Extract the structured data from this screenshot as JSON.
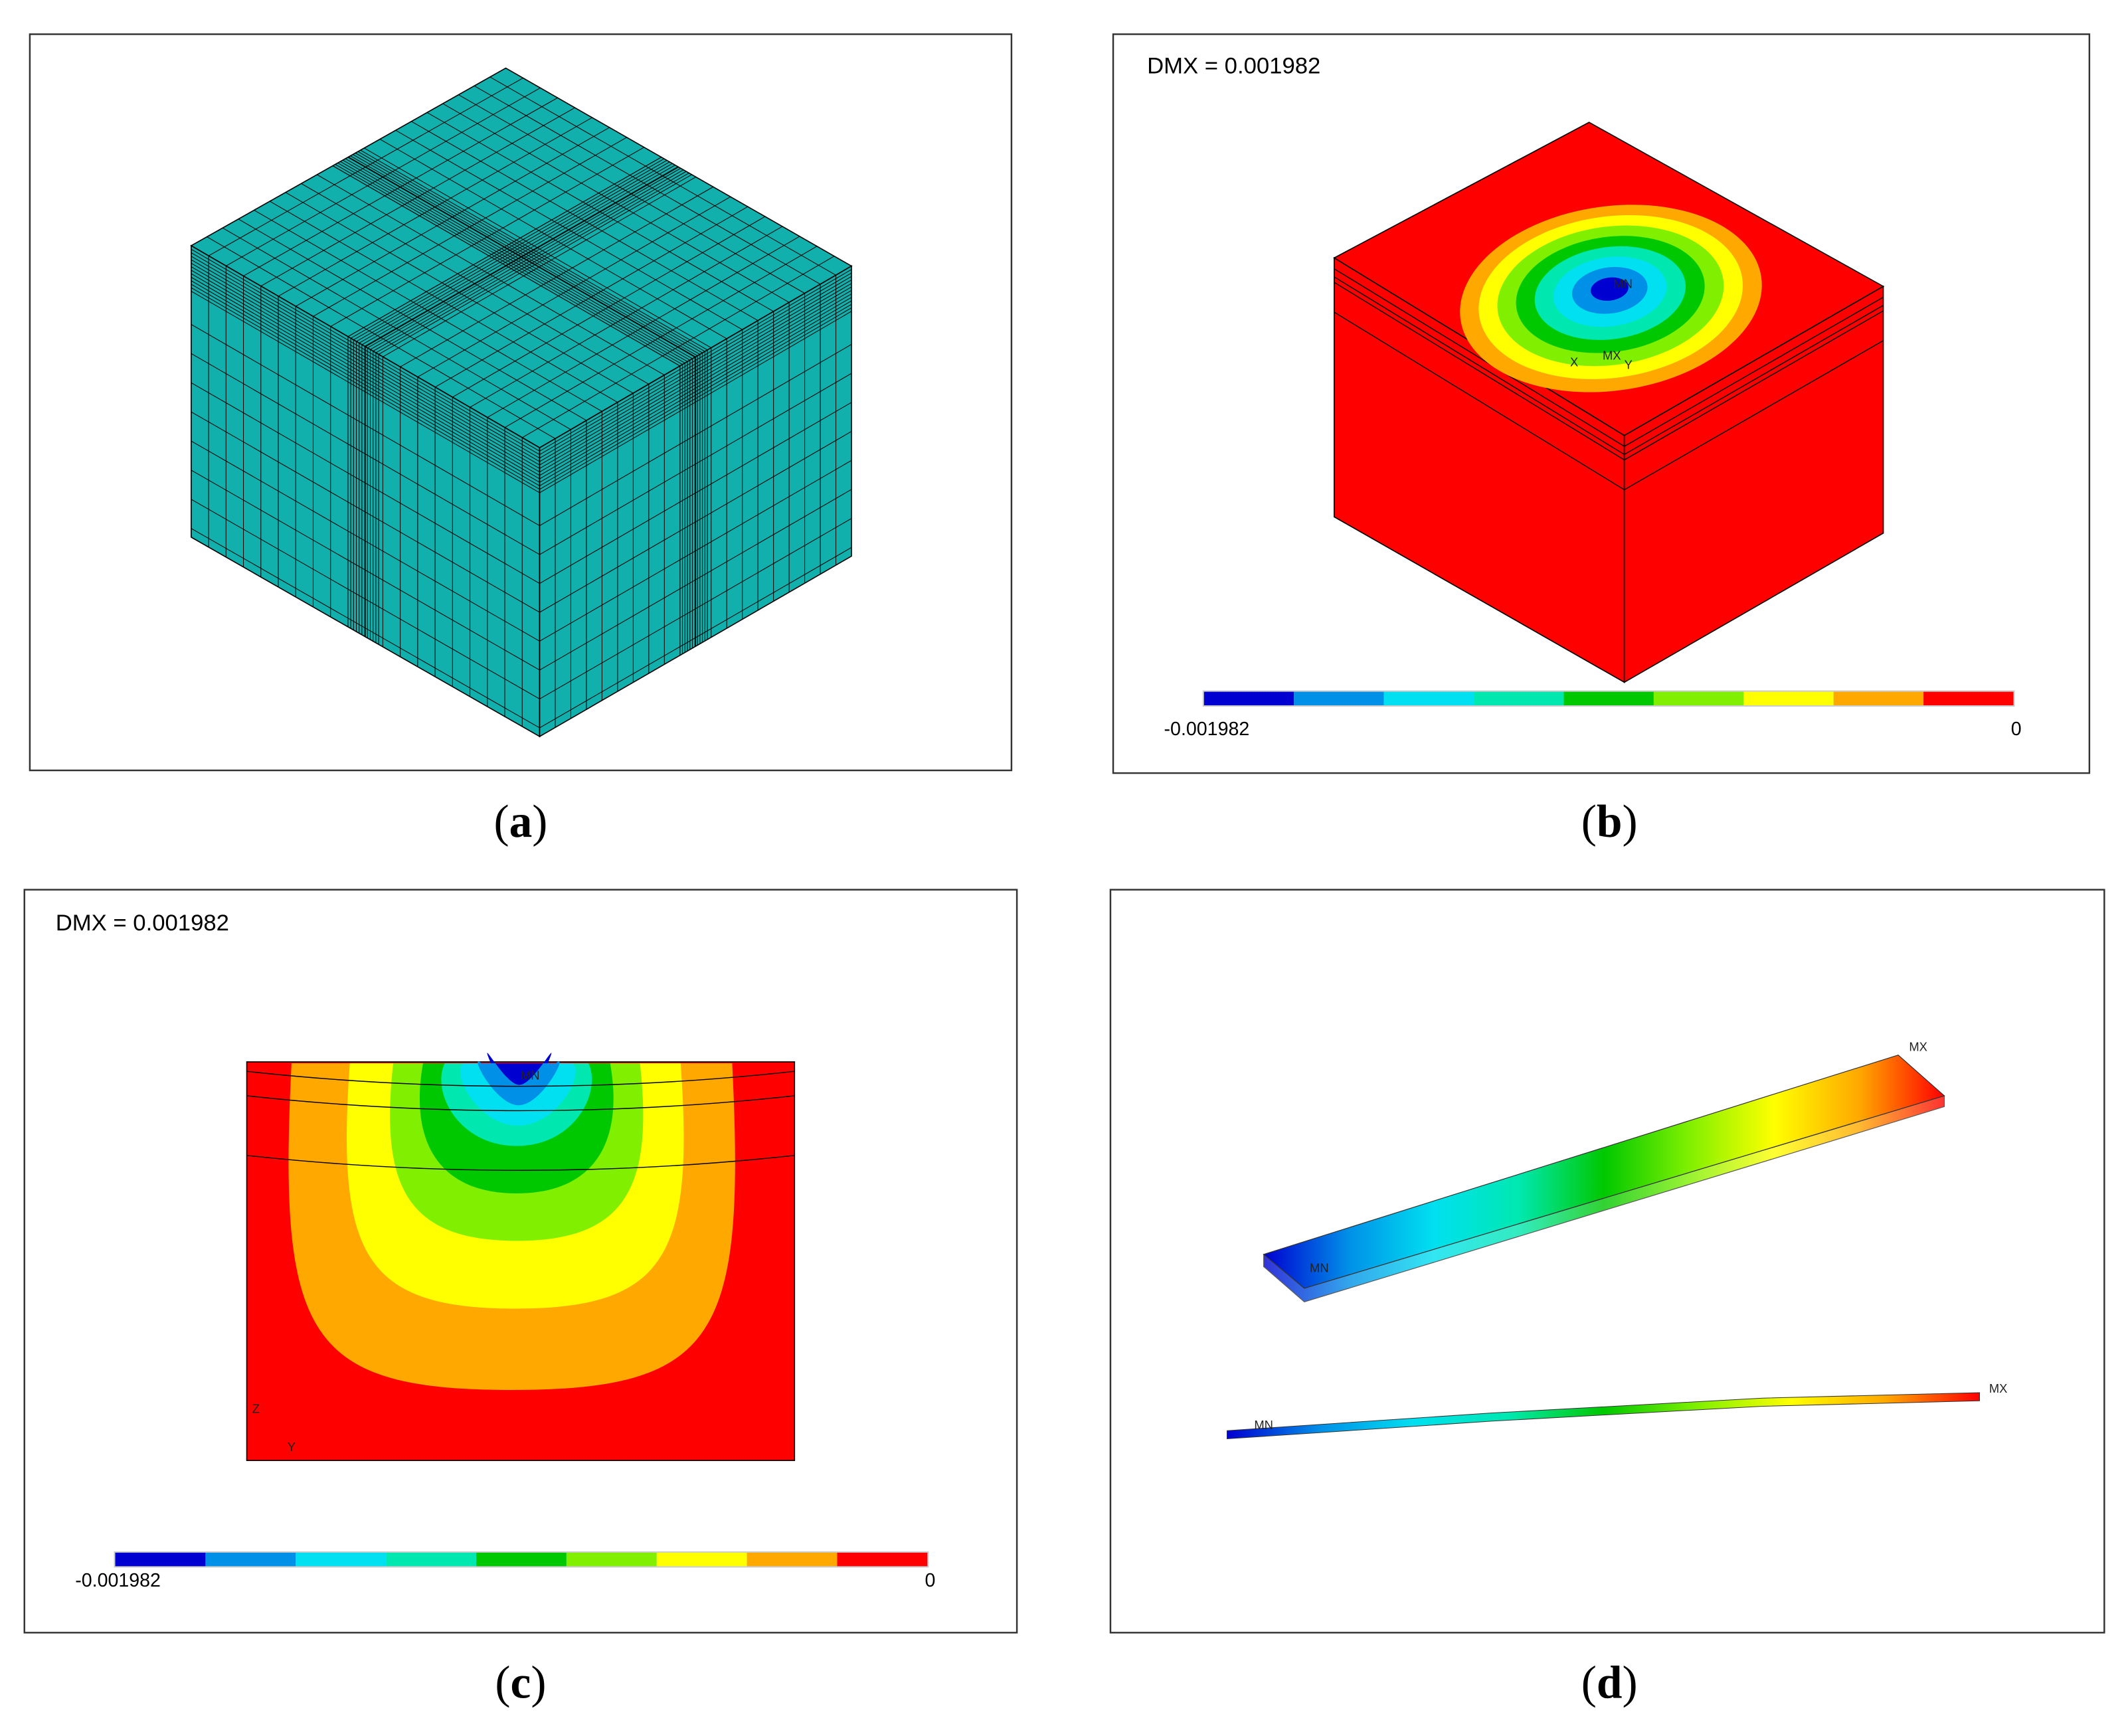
{
  "contour_colors": [
    "#0000d0",
    "#0090e8",
    "#00e0f0",
    "#00e8b0",
    "#00c800",
    "#80f000",
    "#ffff00",
    "#ffa800",
    "#ff0000"
  ],
  "panels": [
    {
      "caption": [
        "(",
        "a",
        ")"
      ]
    },
    {
      "caption": [
        "(",
        "b",
        ")"
      ],
      "dmx": "DMX = 0.001982",
      "legend_min": "-0.001982",
      "legend_max": "0",
      "tags": [
        "MN",
        "MX",
        "X",
        "Y"
      ]
    },
    {
      "caption": [
        "(",
        "c",
        ")"
      ],
      "dmx": "DMX = 0.001982",
      "legend_min": "-0.001982",
      "legend_max": "0",
      "tags": [
        "MN",
        "Z",
        "Y"
      ]
    },
    {
      "caption": [
        "(",
        "d",
        ")"
      ],
      "tags": [
        "MN",
        "MX",
        "MN",
        "MX"
      ]
    }
  ]
}
